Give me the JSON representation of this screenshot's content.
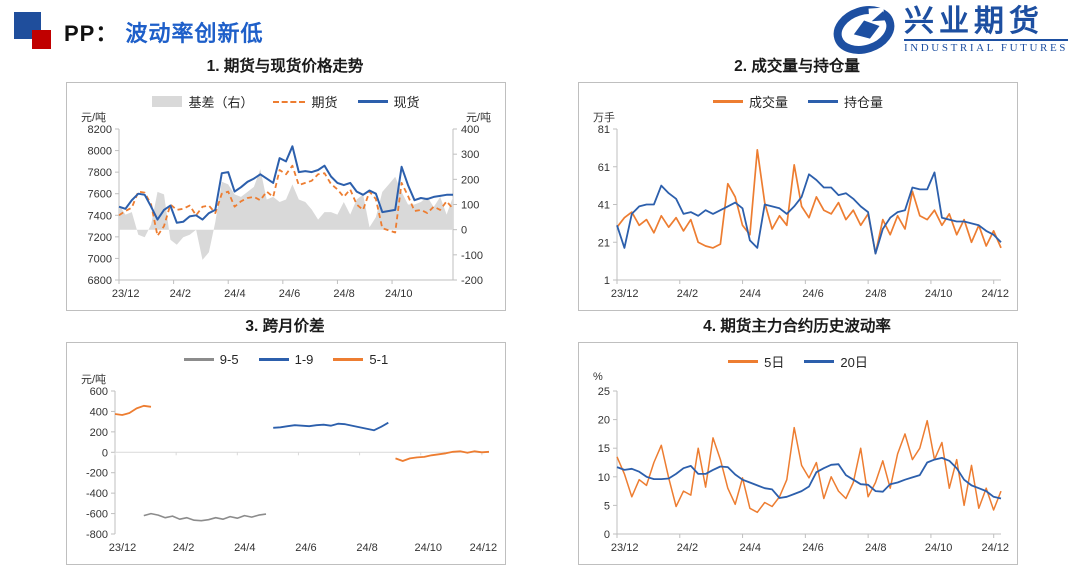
{
  "header": {
    "product": "PP：",
    "subtitle": "波动率创新低"
  },
  "logo": {
    "cn": "兴业期货",
    "en": "INDUSTRIAL FUTURES"
  },
  "colors": {
    "orange": "#ED7D31",
    "blue": "#2C5FAC",
    "gray_area": "#D9D9D9",
    "gray_line": "#8C8C8C",
    "axis": "#BFBFBF",
    "text": "#333333",
    "header_blue": "#1E5FC9",
    "logo_blue": "#1D4FA1",
    "icon_blue": "#1F4E9C",
    "icon_red": "#C00000"
  },
  "chart_data": [
    {
      "type": "line",
      "title": "1. 期货与现货价格走势",
      "unit_left": "元/吨",
      "unit_right": "元/吨",
      "y_left": {
        "min": 6800,
        "max": 8200,
        "ticks": [
          8200,
          8000,
          7800,
          7600,
          7400,
          7200,
          7000,
          6800
        ]
      },
      "y_right": {
        "min": -200,
        "max": 400,
        "ticks": [
          400,
          300,
          200,
          100,
          0,
          -100,
          -200
        ]
      },
      "x_labels": [
        "23/12",
        "24/2",
        "24/4",
        "24/6",
        "24/8",
        "24/10"
      ],
      "margins": {
        "l": 52,
        "r": 52,
        "t": 46,
        "b": 30
      },
      "bottom_axis": true,
      "zero_axis": false,
      "legend": [
        {
          "label": "基差（右）",
          "color": "#D9D9D9",
          "swatch": "area"
        },
        {
          "label": "期货",
          "color": "#ED7D31",
          "swatch": "dash"
        },
        {
          "label": "现货",
          "color": "#2C5FAC",
          "swatch": "line"
        }
      ],
      "series": [
        {
          "name": "基差（右）",
          "axis": "right",
          "kind": "area",
          "color": "#D9D9D9",
          "data": [
            100,
            60,
            70,
            -20,
            -30,
            20,
            150,
            140,
            -40,
            -60,
            -30,
            -20,
            0,
            -120,
            -90,
            30,
            190,
            180,
            140,
            130,
            150,
            170,
            240,
            120,
            130,
            110,
            120,
            180,
            120,
            110,
            80,
            40,
            70,
            70,
            60,
            110,
            60,
            120,
            140,
            10,
            50,
            150,
            180,
            210,
            150,
            100,
            100,
            110,
            130,
            90,
            130,
            60,
            130
          ]
        },
        {
          "name": "期货",
          "axis": "left",
          "kind": "line",
          "color": "#ED7D31",
          "dash": "5 3.5",
          "width": 1.8,
          "data": [
            7400,
            7440,
            7470,
            7620,
            7610,
            7500,
            7210,
            7300,
            7500,
            7450,
            7460,
            7490,
            7400,
            7480,
            7490,
            7420,
            7600,
            7620,
            7480,
            7530,
            7560,
            7570,
            7540,
            7620,
            7570,
            7820,
            7780,
            7860,
            7680,
            7700,
            7720,
            7780,
            7790,
            7690,
            7640,
            7570,
            7640,
            7500,
            7450,
            7620,
            7550,
            7280,
            7260,
            7240,
            7700,
            7580,
            7440,
            7450,
            7420,
            7480,
            7450,
            7530,
            7460
          ]
        },
        {
          "name": "现货",
          "axis": "left",
          "kind": "line",
          "color": "#2C5FAC",
          "width": 2,
          "data": [
            7480,
            7460,
            7540,
            7600,
            7590,
            7480,
            7360,
            7450,
            7490,
            7330,
            7340,
            7390,
            7400,
            7360,
            7420,
            7450,
            7790,
            7800,
            7620,
            7660,
            7710,
            7740,
            7780,
            7740,
            7700,
            7930,
            7900,
            8040,
            7800,
            7810,
            7800,
            7820,
            7860,
            7760,
            7700,
            7680,
            7700,
            7620,
            7590,
            7630,
            7600,
            7430,
            7440,
            7450,
            7850,
            7680,
            7540,
            7560,
            7550,
            7570,
            7580,
            7590,
            7590
          ]
        }
      ]
    },
    {
      "type": "line",
      "title": "2. 成交量与持仓量",
      "unit_left": "万手",
      "y_left": {
        "min": 1,
        "max": 81,
        "ticks": [
          81,
          61,
          41,
          21,
          1
        ]
      },
      "x_labels": [
        "23/12",
        "24/2",
        "24/4",
        "24/6",
        "24/8",
        "24/10",
        "24/12"
      ],
      "margins": {
        "l": 38,
        "r": 16,
        "t": 46,
        "b": 30
      },
      "bottom_axis": true,
      "zero_axis": false,
      "legend": [
        {
          "label": "成交量",
          "color": "#ED7D31",
          "swatch": "line"
        },
        {
          "label": "持仓量",
          "color": "#2C5FAC",
          "swatch": "line"
        }
      ],
      "series": [
        {
          "name": "成交量",
          "axis": "left",
          "kind": "line",
          "color": "#ED7D31",
          "width": 1.7,
          "data": [
            29,
            34,
            37,
            30,
            33,
            26,
            35,
            29,
            34,
            27,
            33,
            21,
            19,
            18,
            20,
            52,
            45,
            30,
            25,
            70,
            42,
            28,
            35,
            30,
            62,
            40,
            34,
            45,
            38,
            36,
            42,
            33,
            38,
            30,
            36,
            15,
            33,
            25,
            35,
            28,
            48,
            35,
            33,
            38,
            30,
            36,
            25,
            33,
            21,
            30,
            19,
            27,
            18
          ]
        },
        {
          "name": "持仓量",
          "axis": "left",
          "kind": "line",
          "color": "#2C5FAC",
          "width": 1.8,
          "data": [
            30,
            18,
            36,
            40,
            41,
            41,
            51,
            47,
            44,
            36,
            37,
            35,
            38,
            36,
            38,
            40,
            42,
            39,
            22,
            18,
            41,
            40,
            39,
            36,
            40,
            45,
            57,
            54,
            50,
            50,
            46,
            47,
            44,
            40,
            37,
            15,
            28,
            34,
            37,
            38,
            50,
            49,
            49,
            58,
            34,
            33,
            32,
            32,
            31,
            30,
            27,
            25,
            21
          ]
        }
      ]
    },
    {
      "type": "line",
      "title": "3. 跨月价差",
      "unit_left": "元/吨",
      "y_left": {
        "min": -800,
        "max": 600,
        "ticks": [
          600,
          400,
          200,
          0,
          -200,
          -400,
          -600,
          -800
        ]
      },
      "x_labels": [
        "23/12",
        "24/2",
        "24/4",
        "24/6",
        "24/8",
        "24/10",
        "24/12"
      ],
      "margins": {
        "l": 48,
        "r": 16,
        "t": 48,
        "b": 30
      },
      "bottom_axis": false,
      "zero_axis": true,
      "legend": [
        {
          "label": "9-5",
          "color": "#8C8C8C",
          "swatch": "line"
        },
        {
          "label": "1-9",
          "color": "#2C5FAC",
          "swatch": "line"
        },
        {
          "label": "5-1",
          "color": "#ED7D31",
          "swatch": "line"
        }
      ],
      "series": [
        {
          "name": "9-5",
          "axis": "left",
          "kind": "line",
          "color": "#8C8C8C",
          "width": 1.6,
          "data": [
            null,
            null,
            null,
            null,
            -620,
            -600,
            -615,
            -640,
            -625,
            -655,
            -640,
            -665,
            -670,
            -660,
            -640,
            -655,
            -630,
            -645,
            -620,
            -635,
            -615,
            -605,
            null,
            null,
            null,
            null,
            null,
            null,
            null,
            null,
            null,
            null,
            null,
            null,
            null,
            null,
            null,
            null,
            null,
            null,
            null,
            null,
            null,
            null,
            null,
            null,
            null,
            null,
            null,
            null,
            null,
            null,
            null
          ]
        },
        {
          "name": "1-9",
          "axis": "left",
          "kind": "line",
          "color": "#2C5FAC",
          "width": 1.8,
          "data": [
            null,
            null,
            null,
            null,
            null,
            null,
            null,
            null,
            null,
            null,
            null,
            null,
            null,
            null,
            null,
            null,
            null,
            null,
            null,
            null,
            null,
            null,
            240,
            245,
            255,
            265,
            260,
            255,
            265,
            270,
            260,
            280,
            275,
            260,
            245,
            230,
            215,
            250,
            290,
            null,
            null,
            null,
            null,
            null,
            null,
            null,
            null,
            null,
            null,
            null,
            null,
            null,
            null
          ]
        },
        {
          "name": "5-1",
          "axis": "left",
          "kind": "line",
          "color": "#ED7D31",
          "width": 1.8,
          "data": [
            375,
            365,
            385,
            430,
            455,
            445,
            null,
            null,
            null,
            null,
            null,
            null,
            null,
            null,
            null,
            null,
            null,
            null,
            null,
            null,
            null,
            null,
            null,
            null,
            null,
            null,
            null,
            null,
            null,
            null,
            null,
            null,
            null,
            null,
            null,
            null,
            null,
            null,
            null,
            -60,
            -85,
            -60,
            -50,
            -45,
            -30,
            -20,
            -10,
            5,
            10,
            -5,
            10,
            0,
            5
          ]
        }
      ]
    },
    {
      "type": "line",
      "title": "4. 期货主力合约历史波动率",
      "unit_left": "%",
      "y_left": {
        "min": 0,
        "max": 25,
        "ticks": [
          25,
          20,
          15,
          10,
          5,
          0
        ]
      },
      "x_labels": [
        "23/12",
        "24/2",
        "24/4",
        "24/6",
        "24/8",
        "24/10",
        "24/12"
      ],
      "margins": {
        "l": 38,
        "r": 16,
        "t": 48,
        "b": 30
      },
      "bottom_axis": true,
      "zero_axis": false,
      "legend": [
        {
          "label": "5日",
          "color": "#ED7D31",
          "swatch": "line"
        },
        {
          "label": "20日",
          "color": "#2C5FAC",
          "swatch": "line"
        }
      ],
      "series": [
        {
          "name": "5日",
          "axis": "left",
          "kind": "line",
          "color": "#ED7D31",
          "width": 1.5,
          "data": [
            13.5,
            10.5,
            6.5,
            9.5,
            8.5,
            12.5,
            15.5,
            9.8,
            4.8,
            7.5,
            6.8,
            15,
            8.2,
            16.8,
            13,
            8,
            5.2,
            9.8,
            4.5,
            3.8,
            5.5,
            4.8,
            6.5,
            9.5,
            18.6,
            12,
            9.8,
            12.5,
            6.2,
            10,
            7.5,
            6.2,
            9,
            15,
            6.5,
            9,
            12.8,
            8,
            14,
            17.5,
            13,
            15,
            19.8,
            13,
            16,
            8,
            13,
            5,
            12,
            4.5,
            8,
            4.2,
            7.5
          ]
        },
        {
          "name": "20日",
          "axis": "left",
          "kind": "line",
          "color": "#2C5FAC",
          "width": 1.8,
          "data": [
            11.7,
            11.2,
            11.4,
            10.9,
            10,
            9.6,
            9.6,
            9.7,
            10.5,
            11.5,
            11.9,
            10.5,
            10.5,
            11.2,
            11.8,
            11.7,
            10.4,
            9.5,
            9,
            8.5,
            8,
            7.8,
            6.3,
            6.5,
            7,
            7.5,
            8.3,
            10.8,
            11.5,
            12.1,
            12.2,
            10.3,
            9.5,
            8.7,
            8.6,
            7.5,
            7.4,
            8.7,
            9,
            9.5,
            9.9,
            10.3,
            12.5,
            13,
            13.3,
            12.8,
            11.5,
            9.5,
            8.5,
            8,
            7.5,
            6.5,
            6.2
          ]
        }
      ]
    }
  ]
}
